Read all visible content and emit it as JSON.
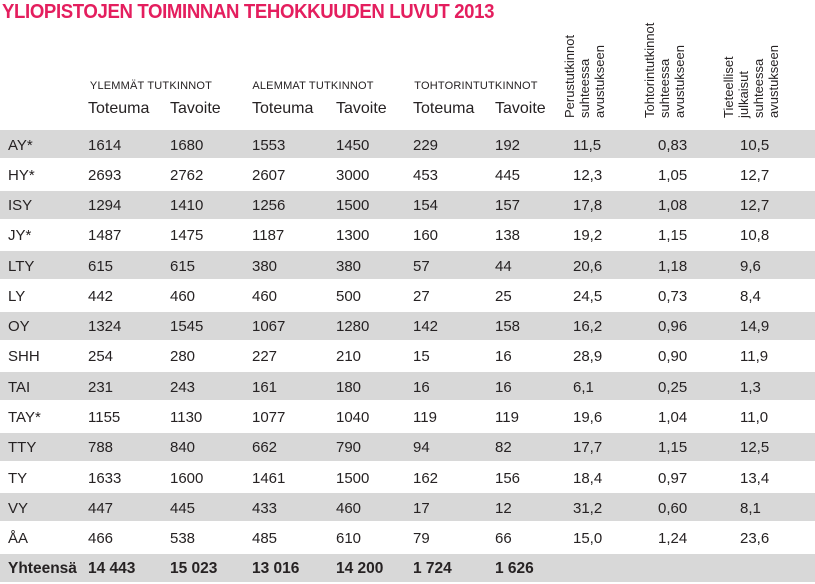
{
  "title": "YLIOPISTOJEN TOIMINNAN TEHOKKUUDEN LUVUT 2013",
  "colors": {
    "title_accent": "#e41e5e",
    "row_stripe": "#d8d8d8",
    "text": "#262223"
  },
  "table": {
    "groups": [
      {
        "label": "YLEMMÄT TUTKINNOT"
      },
      {
        "label": "ALEMMAT TUTKINNOT"
      },
      {
        "label": "TOHTORINTUTKINNOT"
      }
    ],
    "subheaders": [
      "Toteuma",
      "Tavoite",
      "Toteuma",
      "Tavoite",
      "Toteuma",
      "Tavoite"
    ],
    "rotated_headers": [
      "Perustutkinnot\nsuhteessa\navustukseen",
      "Tohtorintutkinnot\nsuhteessa\navustukseen",
      "Tieteelliset\njulkaisut suhteessa\navustukseen"
    ],
    "rows": [
      {
        "label": "AY*",
        "values": [
          "1614",
          "1680",
          "1553",
          "1450",
          "229",
          "192",
          "11,5",
          "0,83",
          "10,5"
        ]
      },
      {
        "label": "HY*",
        "values": [
          "2693",
          "2762",
          "2607",
          "3000",
          "453",
          "445",
          "12,3",
          "1,05",
          "12,7"
        ]
      },
      {
        "label": "ISY",
        "values": [
          "1294",
          "1410",
          "1256",
          "1500",
          "154",
          "157",
          "17,8",
          "1,08",
          "12,7"
        ]
      },
      {
        "label": "JY*",
        "values": [
          "1487",
          "1475",
          "1187",
          "1300",
          "160",
          "138",
          "19,2",
          "1,15",
          "10,8"
        ]
      },
      {
        "label": "LTY",
        "values": [
          "615",
          "615",
          "380",
          "380",
          "57",
          "44",
          "20,6",
          "1,18",
          "9,6"
        ]
      },
      {
        "label": "LY",
        "values": [
          "442",
          "460",
          "460",
          "500",
          "27",
          "25",
          "24,5",
          "0,73",
          "8,4"
        ]
      },
      {
        "label": "OY",
        "values": [
          "1324",
          "1545",
          "1067",
          "1280",
          "142",
          "158",
          "16,2",
          "0,96",
          "14,9"
        ]
      },
      {
        "label": "SHH",
        "values": [
          "254",
          "280",
          "227",
          "210",
          "15",
          "16",
          "28,9",
          "0,90",
          "11,9"
        ]
      },
      {
        "label": "TAI",
        "values": [
          "231",
          "243",
          "161",
          "180",
          "16",
          "16",
          "6,1",
          "0,25",
          "1,3"
        ]
      },
      {
        "label": "TAY*",
        "values": [
          "1155",
          "1130",
          "1077",
          "1040",
          "119",
          "119",
          "19,6",
          "1,04",
          "11,0"
        ]
      },
      {
        "label": "TTY",
        "values": [
          "788",
          "840",
          "662",
          "790",
          "94",
          "82",
          "17,7",
          "1,15",
          "12,5"
        ]
      },
      {
        "label": "TY",
        "values": [
          "1633",
          "1600",
          "1461",
          "1500",
          "162",
          "156",
          "18,4",
          "0,97",
          "13,4"
        ]
      },
      {
        "label": "VY",
        "values": [
          "447",
          "445",
          "433",
          "460",
          "17",
          "12",
          "31,2",
          "0,60",
          "8,1"
        ]
      },
      {
        "label": "ÅA",
        "values": [
          "466",
          "538",
          "485",
          "610",
          "79",
          "66",
          "15,0",
          "1,24",
          "23,6"
        ]
      }
    ],
    "total_row": {
      "label": "Yhteensä",
      "values": [
        "14 443",
        "15 023",
        "13 016",
        "14 200",
        "1 724",
        "1 626",
        "",
        "",
        ""
      ]
    }
  }
}
